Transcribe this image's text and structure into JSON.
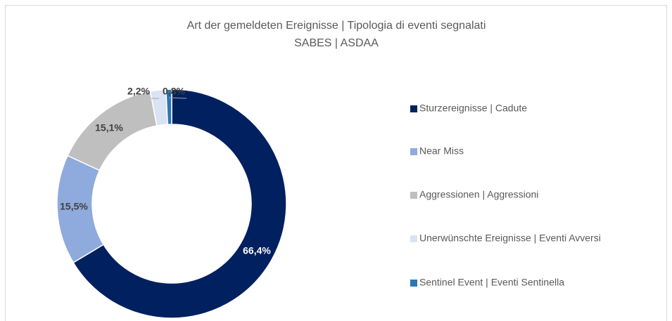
{
  "chart_data": {
    "type": "donut",
    "title": "Art der gemeldeten Ereignisse | Tipologia di eventi segnalati",
    "subtitle": "SABES | ASDAA",
    "categories": [
      "Sturzereignisse | Cadute",
      "Near Miss",
      "Aggressionen | Aggressioni",
      "Unerwünschte Ereignisse | Eventi Avversi",
      "Sentinel Event | Eventi Sentinella"
    ],
    "values": [
      66.4,
      15.5,
      15.1,
      2.2,
      0.8
    ],
    "value_labels": [
      "66,4%",
      "15,5%",
      "15,1%",
      "2,2%",
      "0,8%"
    ],
    "colors": [
      "#002060",
      "#8faadc",
      "#bfbfbf",
      "#dae3f3",
      "#2e75b6"
    ],
    "legend": "right"
  }
}
